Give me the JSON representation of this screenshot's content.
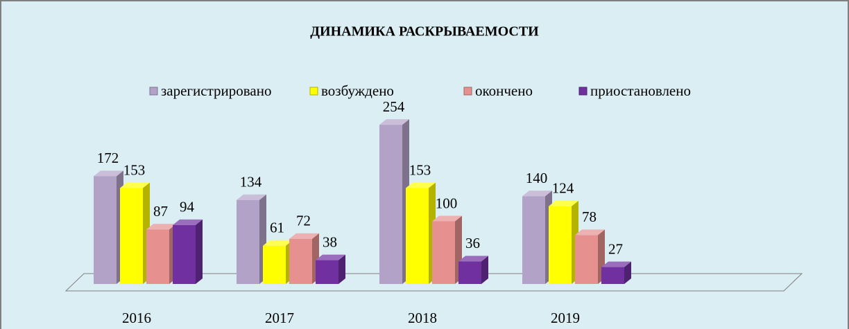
{
  "chart_data": {
    "type": "bar3d",
    "title": "ДИНАМИКА РАСКРЫВАЕМОСТИ",
    "categories": [
      "2016",
      "2017",
      "2018",
      "2019"
    ],
    "series": [
      {
        "name": "зарегистрировано",
        "color": "#b3a2c7",
        "values": [
          172,
          134,
          254,
          140
        ]
      },
      {
        "name": "возбуждено",
        "color": "#ffff00",
        "values": [
          153,
          61,
          153,
          124
        ]
      },
      {
        "name": "окончено",
        "color": "#e6908f",
        "values": [
          87,
          72,
          100,
          78
        ]
      },
      {
        "name": "приостановлено",
        "color": "#7030a0",
        "values": [
          94,
          38,
          36,
          27
        ]
      }
    ],
    "legend": "top"
  }
}
